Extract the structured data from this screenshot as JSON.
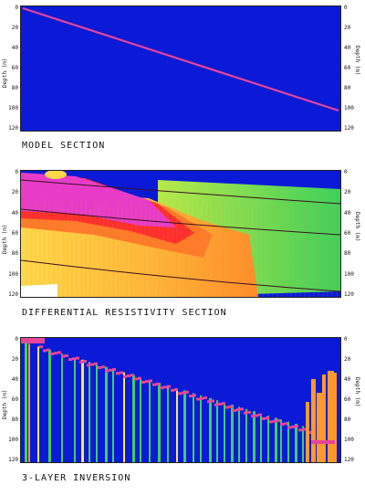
{
  "panels": [
    {
      "caption": "MODEL SECTION",
      "ylabel_left": "Depth (m)",
      "ylabel_right": "Depth (m)",
      "ticks_left": [
        "0",
        "20",
        "40",
        "60",
        "80",
        "100",
        "120"
      ],
      "ticks_right": [
        "0",
        "20",
        "40",
        "60",
        "80",
        "100",
        "120"
      ]
    },
    {
      "caption": "DIFFERENTIAL RESISTIVITY SECTION",
      "ylabel_left": "Depth (m)",
      "ylabel_right": "Depth (m)",
      "ticks_left": [
        "0",
        "20",
        "40",
        "60",
        "80",
        "100",
        "120"
      ],
      "ticks_right": [
        "0",
        "20",
        "40",
        "60",
        "80",
        "100",
        "120"
      ]
    },
    {
      "caption": "3-LAYER INVERSION",
      "ylabel_left": "Depth (m)",
      "ylabel_right": "Depth (m)",
      "ticks_left": [
        "0",
        "20",
        "40",
        "60",
        "80",
        "100",
        "120"
      ],
      "ticks_right": [
        "0",
        "20",
        "40",
        "60",
        "80",
        "100",
        "120"
      ]
    }
  ],
  "colors": {
    "background_blue": "#0a1ad6",
    "interface_magenta": "#e8449a",
    "green": "#3fd05a",
    "orange": "#ff9a2a",
    "yellow": "#ffe84a",
    "red": "#ff3a2a"
  }
}
